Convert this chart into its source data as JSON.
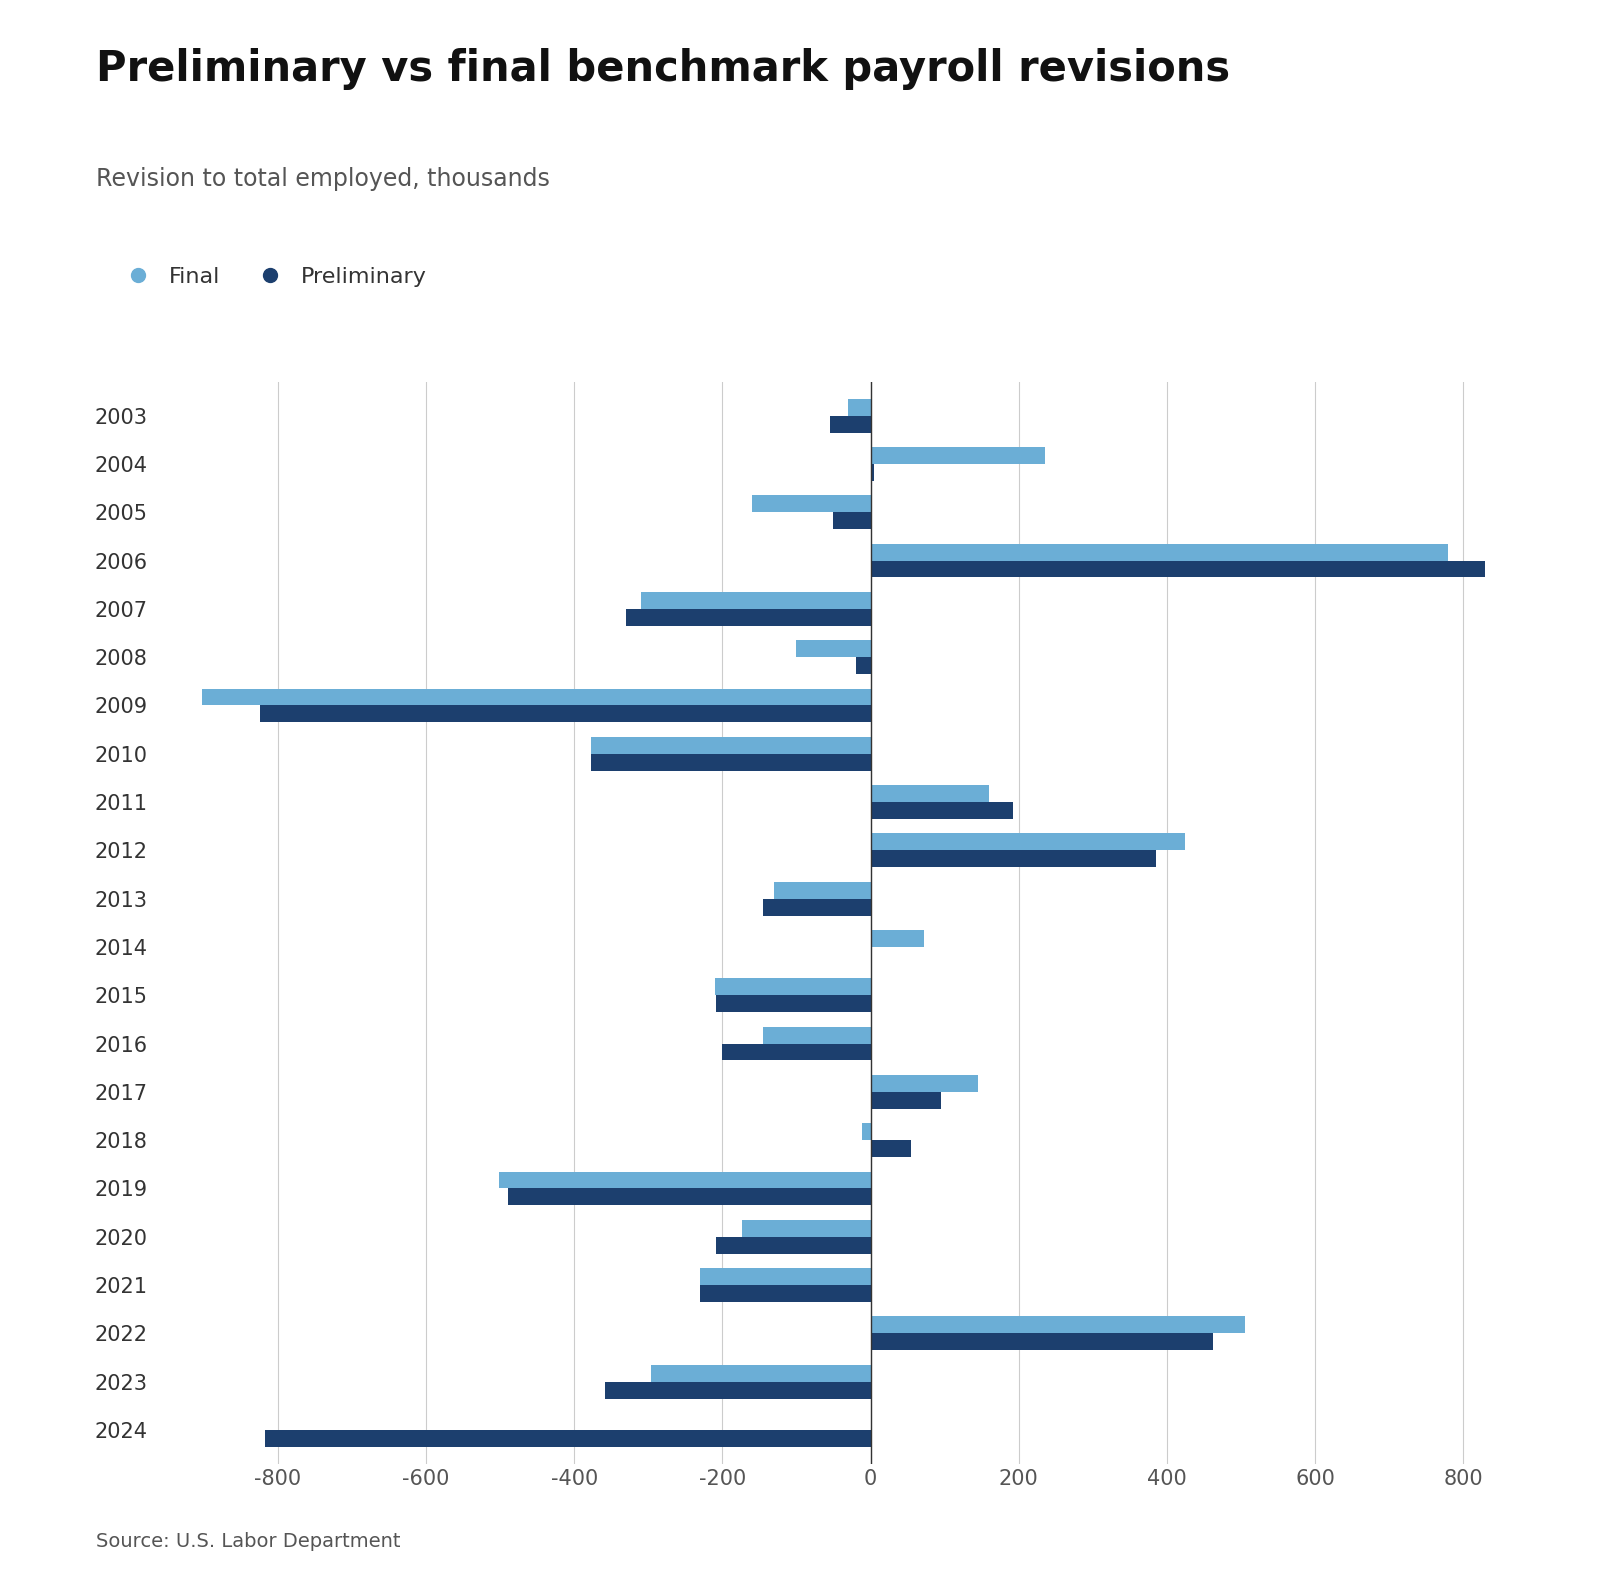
{
  "title": "Preliminary vs final benchmark payroll revisions",
  "subtitle": "Revision to total employed, thousands",
  "source": "Source: U.S. Labor Department",
  "years": [
    2003,
    2004,
    2005,
    2006,
    2007,
    2008,
    2009,
    2010,
    2011,
    2012,
    2013,
    2014,
    2015,
    2016,
    2017,
    2018,
    2019,
    2020,
    2021,
    2022,
    2023,
    2024
  ],
  "final": [
    -30,
    236,
    -160,
    780,
    -310,
    -100,
    -902,
    -378,
    160,
    424,
    -130,
    72,
    -210,
    -145,
    145,
    -12,
    -501,
    -173,
    -230,
    506,
    -296,
    0
  ],
  "preliminary": [
    -55,
    5,
    -50,
    830,
    -330,
    -20,
    -824,
    -378,
    192,
    386,
    -145,
    0,
    -208,
    -200,
    95,
    55,
    -489,
    -208,
    -230,
    462,
    -358,
    -818
  ],
  "final_color": "#6baed6",
  "preliminary_color": "#1c3f6e",
  "bar_height": 0.35,
  "xlim": [
    -970,
    920
  ],
  "xticks": [
    -800,
    -600,
    -400,
    -200,
    0,
    200,
    400,
    600,
    800
  ],
  "background_color": "#ffffff",
  "grid_color": "#cccccc",
  "title_fontsize": 30,
  "subtitle_fontsize": 17,
  "tick_fontsize": 15,
  "source_fontsize": 14,
  "legend_fontsize": 16
}
